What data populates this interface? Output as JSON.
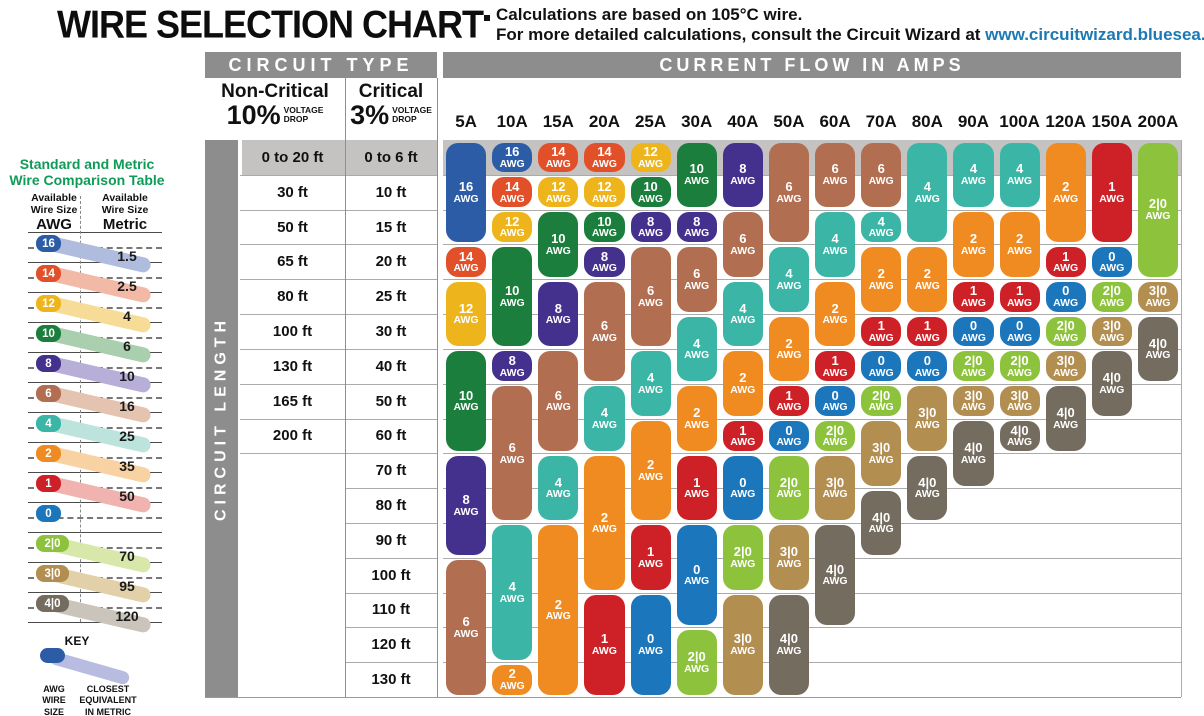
{
  "title": "WIRE SELECTION CHART",
  "notes": {
    "line1": "Calculations are based on 105°C wire.",
    "line2_prefix": "For more detailed calculations, consult the Circuit Wizard at ",
    "link": "www.circuitwizard.bluesea.com"
  },
  "table": {
    "circuit_type_label": "CIRCUIT TYPE",
    "current_flow_label": "CURRENT FLOW IN AMPS",
    "circuit_length_label": "CIRCUIT LENGTH",
    "non_critical": {
      "name": "Non-Critical",
      "pct": "10%",
      "sub": "VOLTAGE\nDROP"
    },
    "critical": {
      "name": "Critical",
      "pct": "3%",
      "sub": "VOLTAGE\nDROP"
    }
  },
  "comparison_table": {
    "title_line1": "Standard and Metric",
    "title_line2": "Wire Comparison Table",
    "col1_header": {
      "l1": "Available",
      "l2": "Wire Size",
      "l3": "AWG"
    },
    "col2_header": {
      "l1": "Available",
      "l2": "Wire Size",
      "l3": "Metric"
    },
    "rows": [
      {
        "awg": "16",
        "metric": "1.5",
        "tint": "#b0bcdd"
      },
      {
        "awg": "14",
        "metric": "2.5",
        "tint": "#f2b9a6"
      },
      {
        "awg": "12",
        "metric": "4",
        "tint": "#f6dc96"
      },
      {
        "awg": "10",
        "metric": "6",
        "tint": "#a9cfaf"
      },
      {
        "awg": "8",
        "metric": "10",
        "tint": "#b7afd8"
      },
      {
        "awg": "6",
        "metric": "16",
        "tint": "#e5c3b1"
      },
      {
        "awg": "4",
        "metric": "25",
        "tint": "#bce3dc"
      },
      {
        "awg": "2",
        "metric": "35",
        "tint": "#f8d2a2"
      },
      {
        "awg": "1",
        "metric": "50",
        "tint": "#f0b3b0"
      },
      {
        "awg": "0",
        "metric": "",
        "tint": ""
      },
      {
        "awg": "2|0",
        "metric": "70",
        "tint": "#d8e8ab"
      },
      {
        "awg": "3|0",
        "metric": "95",
        "tint": "#e2d0a8"
      },
      {
        "awg": "4|0",
        "metric": "120",
        "tint": "#cac4ba"
      }
    ],
    "key": {
      "label": "KEY",
      "left": "AWG\nWIRE\nSIZE",
      "right": "CLOSEST\nEQUIVALENT\nIN METRIC"
    }
  },
  "chart_data": {
    "type": "table",
    "title": "Wire Selection Chart",
    "amp_headers": [
      "5A",
      "10A",
      "15A",
      "20A",
      "25A",
      "30A",
      "40A",
      "50A",
      "60A",
      "70A",
      "80A",
      "90A",
      "100A",
      "120A",
      "150A",
      "200A"
    ],
    "row_labels": [
      {
        "non_critical": "0 to 20 ft",
        "critical": "0 to 6 ft"
      },
      {
        "non_critical": "30 ft",
        "critical": "10 ft"
      },
      {
        "non_critical": "50 ft",
        "critical": "15 ft"
      },
      {
        "non_critical": "65 ft",
        "critical": "20 ft"
      },
      {
        "non_critical": "80 ft",
        "critical": "25 ft"
      },
      {
        "non_critical": "100 ft",
        "critical": "30 ft"
      },
      {
        "non_critical": "130 ft",
        "critical": "40 ft"
      },
      {
        "non_critical": "165 ft",
        "critical": "50 ft"
      },
      {
        "non_critical": "200 ft",
        "critical": "60 ft"
      },
      {
        "non_critical": "",
        "critical": "70 ft"
      },
      {
        "non_critical": "",
        "critical": "80 ft"
      },
      {
        "non_critical": "",
        "critical": "90 ft"
      },
      {
        "non_critical": "",
        "critical": "100 ft"
      },
      {
        "non_critical": "",
        "critical": "110 ft"
      },
      {
        "non_critical": "",
        "critical": "120 ft"
      },
      {
        "non_critical": "",
        "critical": "130 ft"
      }
    ],
    "awg_colors": {
      "16": "#2d5ca6",
      "14": "#e25029",
      "12": "#eeb41c",
      "10": "#1c7e3d",
      "8": "#44318d",
      "6": "#b16e51",
      "4": "#3bb5a5",
      "2": "#f08b21",
      "1": "#ce2127",
      "0": "#1c76bb",
      "2|0": "#8dc33c",
      "3|0": "#b38e51",
      "4|0": "#746c5f"
    },
    "columns": [
      {
        "amps": "5A",
        "segments": [
          [
            "16",
            1,
            3
          ],
          [
            "14",
            4,
            4
          ],
          [
            "12",
            5,
            6
          ],
          [
            "10",
            7,
            9
          ],
          [
            "8",
            10,
            12
          ],
          [
            "6",
            13,
            16
          ]
        ]
      },
      {
        "amps": "10A",
        "segments": [
          [
            "16",
            1,
            1
          ],
          [
            "14",
            2,
            2
          ],
          [
            "12",
            3,
            3
          ],
          [
            "10",
            4,
            6
          ],
          [
            "8",
            7,
            7
          ],
          [
            "6",
            8,
            11
          ],
          [
            "4",
            12,
            15
          ],
          [
            "2",
            16,
            16
          ]
        ]
      },
      {
        "amps": "15A",
        "segments": [
          [
            "14",
            1,
            1
          ],
          [
            "12",
            2,
            2
          ],
          [
            "10",
            3,
            4
          ],
          [
            "8",
            5,
            6
          ],
          [
            "6",
            7,
            9
          ],
          [
            "4",
            10,
            11
          ],
          [
            "2",
            12,
            16
          ]
        ]
      },
      {
        "amps": "20A",
        "segments": [
          [
            "14",
            1,
            1
          ],
          [
            "12",
            2,
            2
          ],
          [
            "10",
            3,
            3
          ],
          [
            "8",
            4,
            4
          ],
          [
            "6",
            5,
            7
          ],
          [
            "4",
            8,
            9
          ],
          [
            "2",
            10,
            13
          ],
          [
            "1",
            14,
            16
          ]
        ]
      },
      {
        "amps": "25A",
        "segments": [
          [
            "12",
            1,
            1
          ],
          [
            "10",
            2,
            2
          ],
          [
            "8",
            3,
            3
          ],
          [
            "6",
            4,
            6
          ],
          [
            "4",
            7,
            8
          ],
          [
            "2",
            9,
            11
          ],
          [
            "1",
            12,
            13
          ],
          [
            "0",
            14,
            16
          ]
        ]
      },
      {
        "amps": "30A",
        "segments": [
          [
            "10",
            1,
            2
          ],
          [
            "8",
            3,
            3
          ],
          [
            "6",
            4,
            5
          ],
          [
            "4",
            6,
            7
          ],
          [
            "2",
            8,
            9
          ],
          [
            "1",
            10,
            11
          ],
          [
            "0",
            12,
            14
          ],
          [
            "2|0",
            15,
            16
          ]
        ]
      },
      {
        "amps": "40A",
        "segments": [
          [
            "8",
            1,
            2
          ],
          [
            "6",
            3,
            4
          ],
          [
            "4",
            5,
            6
          ],
          [
            "2",
            7,
            8
          ],
          [
            "1",
            9,
            9
          ],
          [
            "0",
            10,
            11
          ],
          [
            "2|0",
            12,
            13
          ],
          [
            "3|0",
            14,
            16
          ]
        ]
      },
      {
        "amps": "50A",
        "segments": [
          [
            "6",
            1,
            3
          ],
          [
            "4",
            4,
            5
          ],
          [
            "2",
            6,
            7
          ],
          [
            "1",
            8,
            8
          ],
          [
            "0",
            9,
            9
          ],
          [
            "2|0",
            10,
            11
          ],
          [
            "3|0",
            12,
            13
          ],
          [
            "4|0",
            14,
            16
          ]
        ]
      },
      {
        "amps": "60A",
        "segments": [
          [
            "6",
            1,
            2
          ],
          [
            "4",
            3,
            4
          ],
          [
            "2",
            5,
            6
          ],
          [
            "1",
            7,
            7
          ],
          [
            "0",
            8,
            8
          ],
          [
            "2|0",
            9,
            9
          ],
          [
            "3|0",
            10,
            11
          ],
          [
            "4|0",
            12,
            14
          ]
        ]
      },
      {
        "amps": "70A",
        "segments": [
          [
            "6",
            1,
            2
          ],
          [
            "4",
            3,
            3
          ],
          [
            "2",
            4,
            5
          ],
          [
            "1",
            6,
            6
          ],
          [
            "0",
            7,
            7
          ],
          [
            "2|0",
            8,
            8
          ],
          [
            "3|0",
            9,
            10
          ],
          [
            "4|0",
            11,
            12
          ]
        ]
      },
      {
        "amps": "80A",
        "segments": [
          [
            "4",
            1,
            3
          ],
          [
            "2",
            4,
            5
          ],
          [
            "1",
            6,
            6
          ],
          [
            "0",
            7,
            7
          ],
          [
            "3|0",
            8,
            9
          ],
          [
            "4|0",
            10,
            11
          ]
        ]
      },
      {
        "amps": "90A",
        "segments": [
          [
            "4",
            1,
            2
          ],
          [
            "2",
            3,
            4
          ],
          [
            "1",
            5,
            5
          ],
          [
            "0",
            6,
            6
          ],
          [
            "2|0",
            7,
            7
          ],
          [
            "3|0",
            8,
            8
          ],
          [
            "4|0",
            9,
            10
          ]
        ]
      },
      {
        "amps": "100A",
        "segments": [
          [
            "4",
            1,
            2
          ],
          [
            "2",
            3,
            4
          ],
          [
            "1",
            5,
            5
          ],
          [
            "0",
            6,
            6
          ],
          [
            "2|0",
            7,
            7
          ],
          [
            "3|0",
            8,
            8
          ],
          [
            "4|0",
            9,
            9
          ]
        ]
      },
      {
        "amps": "120A",
        "segments": [
          [
            "2",
            1,
            3
          ],
          [
            "1",
            4,
            4
          ],
          [
            "0",
            5,
            5
          ],
          [
            "2|0",
            6,
            6
          ],
          [
            "3|0",
            7,
            7
          ],
          [
            "4|0",
            8,
            9
          ]
        ]
      },
      {
        "amps": "150A",
        "segments": [
          [
            "1",
            1,
            3
          ],
          [
            "0",
            4,
            4
          ],
          [
            "2|0",
            5,
            5
          ],
          [
            "3|0",
            6,
            6
          ],
          [
            "4|0",
            7,
            8
          ]
        ]
      },
      {
        "amps": "200A",
        "segments": [
          [
            "2|0",
            1,
            4
          ],
          [
            "3|0",
            5,
            5
          ],
          [
            "4|0",
            6,
            7
          ]
        ]
      }
    ]
  }
}
